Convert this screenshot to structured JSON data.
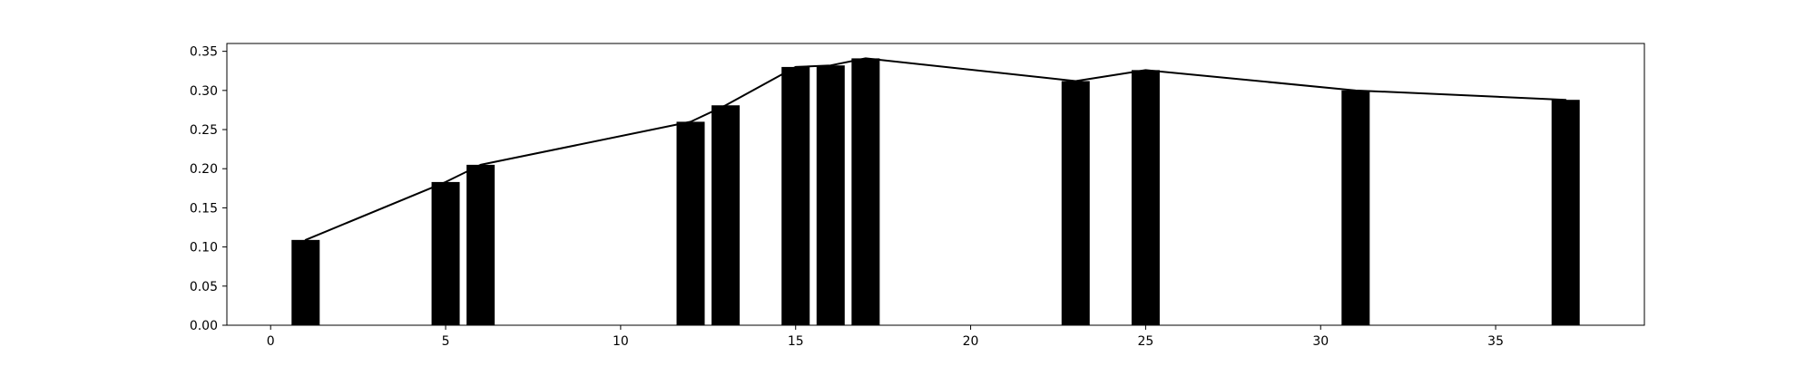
{
  "chart_data": {
    "type": "bar",
    "title": "",
    "xlabel": "",
    "ylabel": "",
    "xlim": [
      -1.25,
      39.25
    ],
    "ylim": [
      0,
      0.36
    ],
    "grid": false,
    "x_ticks": [
      0,
      5,
      10,
      15,
      20,
      25,
      30,
      35
    ],
    "y_ticks": [
      "0.00",
      "0.05",
      "0.10",
      "0.15",
      "0.20",
      "0.25",
      "0.30",
      "0.35"
    ],
    "bar_color": "#000000",
    "line_color": "#000000",
    "series": [
      {
        "type": "bar",
        "x": [
          1,
          5,
          6,
          12,
          13,
          15,
          16,
          17,
          23,
          25,
          31,
          37
        ],
        "values": [
          0.109,
          0.183,
          0.205,
          0.26,
          0.281,
          0.33,
          0.332,
          0.341,
          0.312,
          0.326,
          0.3,
          0.288
        ]
      },
      {
        "type": "line",
        "x": [
          1,
          5,
          6,
          12,
          13,
          15,
          16,
          17,
          23,
          25,
          31,
          37
        ],
        "values": [
          0.109,
          0.183,
          0.205,
          0.26,
          0.281,
          0.33,
          0.332,
          0.341,
          0.312,
          0.326,
          0.3,
          0.288
        ]
      }
    ]
  }
}
